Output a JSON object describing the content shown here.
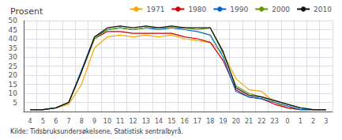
{
  "chart_data": {
    "type": "line",
    "title": "Prosent",
    "source": "Kilde: Tidsbruksundersøkelsene, Statistisk sentralbyrå.",
    "categories": [
      "4",
      "5",
      "6",
      "7",
      "8",
      "9",
      "10",
      "11",
      "12",
      "13",
      "14",
      "15",
      "16",
      "17",
      "18",
      "19",
      "20",
      "21",
      "22",
      "23",
      "0",
      "1",
      "2",
      "3"
    ],
    "series": [
      {
        "name": "1971",
        "color": "#FFA500",
        "values": [
          1,
          1,
          2,
          4,
          15,
          35,
          41,
          42,
          41,
          42,
          41,
          42,
          40,
          39,
          38,
          32,
          18,
          12,
          11,
          5,
          2,
          1,
          1,
          1
        ]
      },
      {
        "name": "1980",
        "color": "#CC0000",
        "values": [
          1,
          1,
          2,
          5,
          22,
          40,
          44,
          44,
          43,
          43,
          43,
          43,
          41,
          40,
          38,
          28,
          12,
          8,
          7,
          4,
          2,
          1,
          1,
          1
        ]
      },
      {
        "name": "1990",
        "color": "#0066CC",
        "values": [
          1,
          1,
          2,
          5,
          23,
          41,
          45,
          46,
          45,
          46,
          45,
          46,
          45,
          44,
          42,
          30,
          11,
          8,
          7,
          5,
          3,
          1,
          1,
          1
        ]
      },
      {
        "name": "2000",
        "color": "#669900",
        "values": [
          1,
          1,
          2,
          5,
          22,
          40,
          45,
          46,
          45,
          46,
          46,
          46,
          46,
          45,
          46,
          32,
          14,
          10,
          8,
          6,
          4,
          2,
          1,
          1
        ]
      },
      {
        "name": "2010",
        "color": "#111111",
        "values": [
          1,
          1,
          2,
          5,
          22,
          41,
          46,
          47,
          46,
          47,
          46,
          47,
          46,
          46,
          46,
          33,
          13,
          9,
          8,
          6,
          4,
          2,
          1,
          1
        ]
      }
    ],
    "ylim": [
      0,
      50
    ],
    "yticks": [
      5,
      10,
      15,
      20,
      25,
      30,
      35,
      40,
      45,
      50
    ],
    "grid": true,
    "legend": "upper right"
  }
}
